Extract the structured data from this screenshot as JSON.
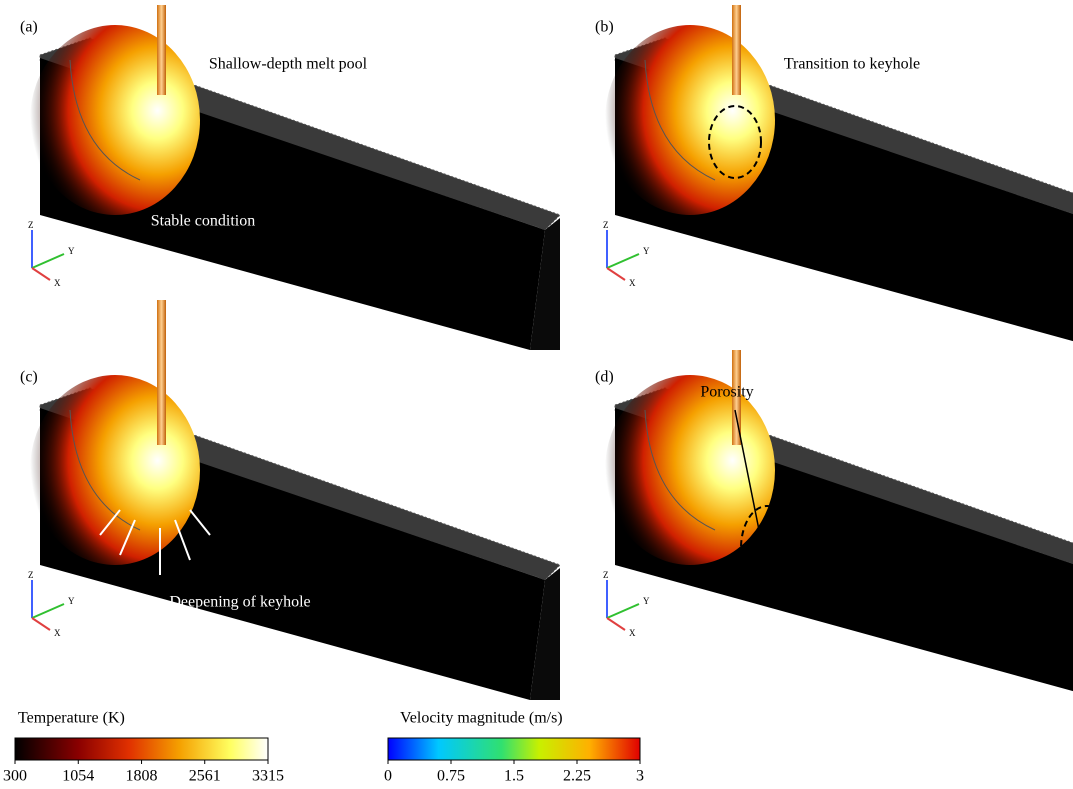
{
  "panels": [
    {
      "label": "(a)",
      "annotations": [
        "Shallow-depth melt pool",
        "Stable condition"
      ]
    },
    {
      "label": "(b)",
      "annotations": [
        "Transition to keyhole"
      ]
    },
    {
      "label": "(c)",
      "annotations": [
        "Deepening of keyhole"
      ]
    },
    {
      "label": "(d)",
      "annotations": [
        "Porosity"
      ]
    }
  ],
  "triad": [
    "Z",
    "Y",
    "X"
  ],
  "colorbars": [
    {
      "title": "Temperature (K)",
      "ticks": [
        300,
        1054,
        1808,
        2561,
        3315
      ]
    },
    {
      "title": "Velocity magnitude (m/s)",
      "ticks": [
        0,
        0.75,
        1.5,
        2.25,
        3
      ]
    }
  ]
}
